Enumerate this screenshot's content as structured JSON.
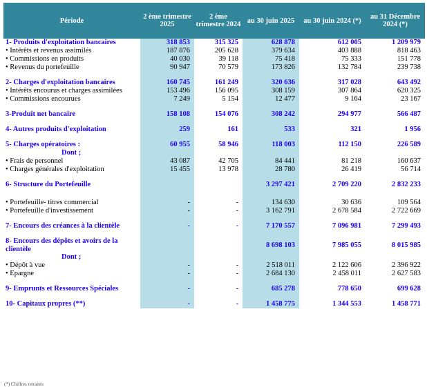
{
  "headers": [
    "Période",
    "2 ème trimestre 2025",
    "2 ème trimestre 2024",
    "au 30 juin 2025",
    "au 30 juin 2024 (*)",
    "au 31 Décembre 2024 (*)"
  ],
  "rows": [
    {
      "t": "s",
      "label": "1- Produits d'exploitation bancaires",
      "v": [
        "318 853",
        "315 325",
        "628 878",
        "612 005",
        "1 209 979"
      ]
    },
    {
      "t": "d",
      "label": "• Intérêts et revenus assimilés",
      "v": [
        "187 876",
        "205 628",
        "379 634",
        "403 888",
        "818 463"
      ]
    },
    {
      "t": "d",
      "label": "• Commissions en produits",
      "v": [
        "40 030",
        "39 118",
        "75 418",
        "75 333",
        "151 778"
      ]
    },
    {
      "t": "d",
      "label": "• Revenus du portefeuille",
      "v": [
        "90 947",
        "70 579",
        "173 826",
        "132 784",
        "239 738"
      ]
    },
    {
      "t": "g"
    },
    {
      "t": "s",
      "label": "2- Charges d'exploitation bancaires",
      "v": [
        "160 745",
        "161 249",
        "320 636",
        "317 028",
        "643 492"
      ]
    },
    {
      "t": "d",
      "label": "• Intérêts encourus et charges assimilées",
      "v": [
        "153 496",
        "156 095",
        "308 159",
        "307 864",
        "620 325"
      ]
    },
    {
      "t": "d",
      "label": "• Commissions encourues",
      "v": [
        "7 249",
        "5 154",
        "12 477",
        "9 164",
        "23 167"
      ]
    },
    {
      "t": "g"
    },
    {
      "t": "s",
      "label": "3-Produit net bancaire",
      "v": [
        "158 108",
        "154 076",
        "308 242",
        "294 977",
        "566 487"
      ]
    },
    {
      "t": "g"
    },
    {
      "t": "s",
      "label": "4- Autres produits d'exploitation",
      "v": [
        "259",
        "161",
        "533",
        "321",
        "1 956"
      ]
    },
    {
      "t": "g"
    },
    {
      "t": "s",
      "label": "5- Charges opératoires :",
      "v": [
        "60 955",
        "58 946",
        "118 003",
        "112 150",
        "226 589"
      ]
    },
    {
      "t": "dont",
      "label": "Dont ;"
    },
    {
      "t": "d",
      "label": "• Frais de personnel",
      "v": [
        "43 087",
        "42 705",
        "84 441",
        "81 218",
        "160 637"
      ]
    },
    {
      "t": "d",
      "label": "• Charges générales d'exploitation",
      "v": [
        "15 455",
        "13 978",
        "28 780",
        "26 419",
        "56 714"
      ]
    },
    {
      "t": "g"
    },
    {
      "t": "s",
      "label": "6- Structure du Portefeuille",
      "v": [
        "",
        "",
        "3 297 421",
        "2 709 220",
        "2 832 233"
      ]
    },
    {
      "t": "g2"
    },
    {
      "t": "d",
      "label": "• Portefeuille- titres commercial",
      "v": [
        "-",
        "-",
        "134 630",
        "30 636",
        "109 564"
      ]
    },
    {
      "t": "d",
      "label": "• Portefeuille d'investissement",
      "v": [
        "-",
        "-",
        "3 162 791",
        "2 678 584",
        "2 722 669"
      ]
    },
    {
      "t": "g"
    },
    {
      "t": "s",
      "label": "7- Encours des créances à la clientèle",
      "v": [
        "-",
        "-",
        "7 170 557",
        "7 096 981",
        "7 299 493"
      ]
    },
    {
      "t": "g"
    },
    {
      "t": "s",
      "label": "8- Encours des dépôts et avoirs de la clientèle",
      "v": [
        "",
        "",
        "8 698 103",
        "7 985 055",
        "8 015 985"
      ]
    },
    {
      "t": "dont",
      "label": "Dont ;"
    },
    {
      "t": "d",
      "label": "• Dépôt à vue",
      "v": [
        "-",
        "-",
        "2 518 011",
        "2 122 606",
        "2 396 922"
      ]
    },
    {
      "t": "d",
      "label": "• Epargne",
      "v": [
        "-",
        "-",
        "2 684 130",
        "2 458 011",
        "2 627 583"
      ]
    },
    {
      "t": "g"
    },
    {
      "t": "s",
      "label": "9- Emprunts et Ressources Spéciales",
      "v": [
        "-",
        "-",
        "685 278",
        "778 650",
        "699 628"
      ]
    },
    {
      "t": "g"
    },
    {
      "t": "s",
      "label": "10- Capitaux propres (**)",
      "v": [
        "-",
        "-",
        "1 458 775",
        "1 344 553",
        "1 458 771"
      ]
    }
  ],
  "footer": "(*) Chiffres retraités"
}
